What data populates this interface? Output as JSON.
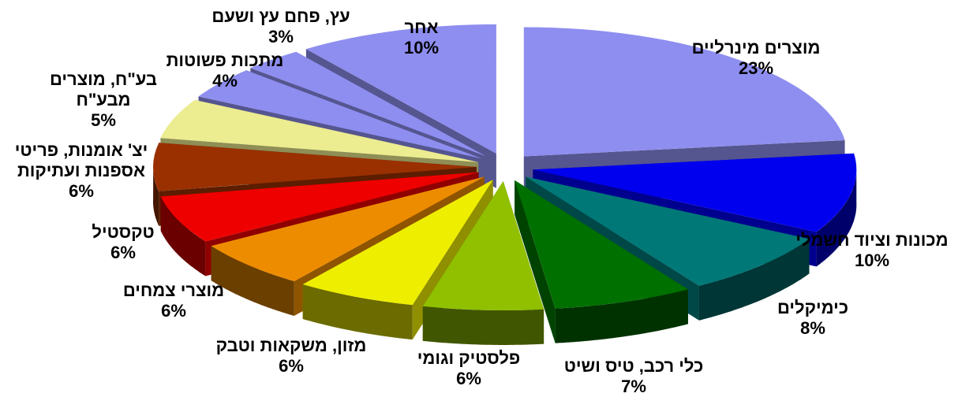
{
  "chart_data": {
    "type": "pie",
    "style": "3d-exploded",
    "title": "",
    "slices": [
      {
        "label": "מוצרים מינרליים",
        "value": 23,
        "value_label": "23%",
        "color": "#8e8ef0"
      },
      {
        "label": "מכונות וציוד חשמלי",
        "value": 10,
        "value_label": "10%",
        "color": "#0000ee"
      },
      {
        "label": "כימיקלים",
        "value": 8,
        "value_label": "8%",
        "color": "#007878"
      },
      {
        "label": "כלי רכב, טיס ושיט",
        "value": 7,
        "value_label": "7%",
        "color": "#007000"
      },
      {
        "label": "פלסטיק וגומי",
        "value": 6,
        "value_label": "6%",
        "color": "#90c000"
      },
      {
        "label": "מזון, משקאות וטבק",
        "value": 6,
        "value_label": "6%",
        "color": "#eeee00"
      },
      {
        "label": "מוצרי צמחים",
        "value": 6,
        "value_label": "6%",
        "color": "#ee8c00"
      },
      {
        "label": "טקסטיל",
        "value": 6,
        "value_label": "6%",
        "color": "#ee0000"
      },
      {
        "label": "יצ' אומנות, פריטי אספנות ועתיקות",
        "label_lines": [
          "יצ' אומנות, פריטי",
          "אספנות ועתיקות"
        ],
        "value": 6,
        "value_label": "6%",
        "color": "#9a3000"
      },
      {
        "label": "בע\"ח, מוצרים מבע\"ח",
        "label_lines": [
          "בע\"ח, מוצרים",
          "מבע\"ח"
        ],
        "value": 5,
        "value_label": "5%",
        "color": "#ecec90"
      },
      {
        "label": "מתכות פשוטות",
        "value": 4,
        "value_label": "4%",
        "color": "#8e8ef0"
      },
      {
        "label": "עץ, פחם עץ ושעם",
        "value": 3,
        "value_label": "3%",
        "color": "#8e8ef0"
      },
      {
        "label": "אחר",
        "value": 10,
        "value_label": "10%",
        "color": "#8e8ef0"
      }
    ]
  }
}
